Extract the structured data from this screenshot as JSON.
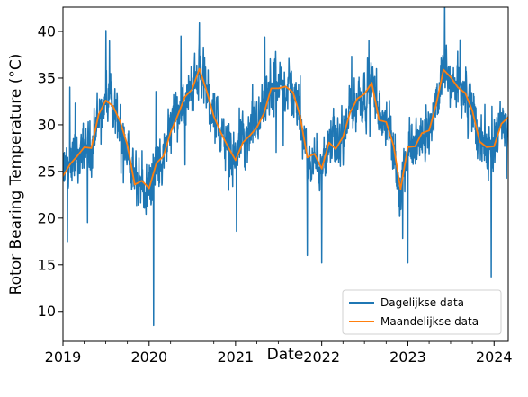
{
  "chart_data": {
    "type": "line",
    "title": "",
    "xlabel": "Date",
    "ylabel": "Rotor Bearing Temperature (°C)",
    "xlim": [
      "2019-01-01",
      "2024-03-01"
    ],
    "ylim": [
      6.8,
      42.6
    ],
    "x_ticks": [
      "2019-01-01",
      "2020-01-01",
      "2021-01-01",
      "2022-01-01",
      "2023-01-01",
      "2024-01-01"
    ],
    "x_tick_labels": [
      "2019",
      "2020",
      "2021",
      "2022",
      "2023",
      "2024"
    ],
    "y_ticks": [
      10,
      15,
      20,
      25,
      30,
      35,
      40
    ],
    "y_tick_labels": [
      "10",
      "15",
      "20",
      "25",
      "30",
      "35",
      "40"
    ],
    "grid": false,
    "legend_position": "lower-right",
    "colors": {
      "daily": "#1f77b4",
      "monthly": "#ff7f0e"
    },
    "series": [
      {
        "name": "Dagelijkse data",
        "kind": "daily",
        "note": "daily readings; dense noisy series",
        "spikes": [
          {
            "date": "2019-01-20",
            "value": 17.5
          },
          {
            "date": "2019-07-02",
            "value": 40.1
          },
          {
            "date": "2020-01-20",
            "value": 8.5
          },
          {
            "date": "2020-08-01",
            "value": 40.9
          },
          {
            "date": "2020-05-15",
            "value": 39.5
          },
          {
            "date": "2021-01-05",
            "value": 18.6
          },
          {
            "date": "2021-05-05",
            "value": 39.4
          },
          {
            "date": "2021-11-01",
            "value": 16.0
          },
          {
            "date": "2022-01-01",
            "value": 15.2
          },
          {
            "date": "2022-07-20",
            "value": 39.0
          },
          {
            "date": "2023-01-01",
            "value": 15.2
          },
          {
            "date": "2023-08-10",
            "value": 39.1
          },
          {
            "date": "2023-12-20",
            "value": 13.7
          }
        ]
      },
      {
        "name": "Maandelijkse data",
        "kind": "monthly",
        "points": [
          [
            "2019-01-01",
            24.5
          ],
          [
            "2019-02-01",
            25.8
          ],
          [
            "2019-03-01",
            26.6
          ],
          [
            "2019-04-01",
            27.6
          ],
          [
            "2019-05-01",
            27.5
          ],
          [
            "2019-06-01",
            31.1
          ],
          [
            "2019-07-01",
            32.6
          ],
          [
            "2019-08-01",
            32.0
          ],
          [
            "2019-09-01",
            30.3
          ],
          [
            "2019-10-01",
            27.8
          ],
          [
            "2019-11-01",
            23.6
          ],
          [
            "2019-12-01",
            24.0
          ],
          [
            "2020-01-01",
            23.2
          ],
          [
            "2020-02-01",
            25.9
          ],
          [
            "2020-03-01",
            26.6
          ],
          [
            "2020-04-01",
            29.2
          ],
          [
            "2020-05-01",
            31.0
          ],
          [
            "2020-06-01",
            33.0
          ],
          [
            "2020-07-01",
            33.8
          ],
          [
            "2020-08-01",
            36.0
          ],
          [
            "2020-09-01",
            33.6
          ],
          [
            "2020-10-01",
            30.9
          ],
          [
            "2020-11-01",
            29.1
          ],
          [
            "2020-12-01",
            27.6
          ],
          [
            "2021-01-01",
            26.2
          ],
          [
            "2021-02-01",
            28.1
          ],
          [
            "2021-03-01",
            28.8
          ],
          [
            "2021-04-01",
            29.7
          ],
          [
            "2021-05-01",
            31.2
          ],
          [
            "2021-06-01",
            33.9
          ],
          [
            "2021-07-01",
            33.9
          ],
          [
            "2021-08-01",
            34.1
          ],
          [
            "2021-09-01",
            33.5
          ],
          [
            "2021-10-01",
            31.0
          ],
          [
            "2021-11-01",
            26.5
          ],
          [
            "2021-12-01",
            26.9
          ],
          [
            "2022-01-01",
            25.3
          ],
          [
            "2022-02-01",
            28.1
          ],
          [
            "2022-03-01",
            27.4
          ],
          [
            "2022-04-01",
            28.7
          ],
          [
            "2022-05-01",
            31.3
          ],
          [
            "2022-06-01",
            32.8
          ],
          [
            "2022-07-01",
            33.3
          ],
          [
            "2022-08-01",
            34.5
          ],
          [
            "2022-09-01",
            30.5
          ],
          [
            "2022-10-01",
            30.3
          ],
          [
            "2022-11-01",
            27.8
          ],
          [
            "2022-12-01",
            23.1
          ],
          [
            "2023-01-01",
            27.6
          ],
          [
            "2023-02-01",
            27.7
          ],
          [
            "2023-03-01",
            29.1
          ],
          [
            "2023-04-01",
            29.4
          ],
          [
            "2023-05-01",
            32.2
          ],
          [
            "2023-06-01",
            35.9
          ],
          [
            "2023-07-01",
            35.1
          ],
          [
            "2023-08-01",
            34.0
          ],
          [
            "2023-09-01",
            33.4
          ],
          [
            "2023-10-01",
            31.5
          ],
          [
            "2023-11-01",
            28.2
          ],
          [
            "2023-12-01",
            27.6
          ],
          [
            "2024-01-01",
            27.7
          ],
          [
            "2024-02-01",
            30.1
          ],
          [
            "2024-03-01",
            30.8
          ]
        ]
      }
    ]
  }
}
